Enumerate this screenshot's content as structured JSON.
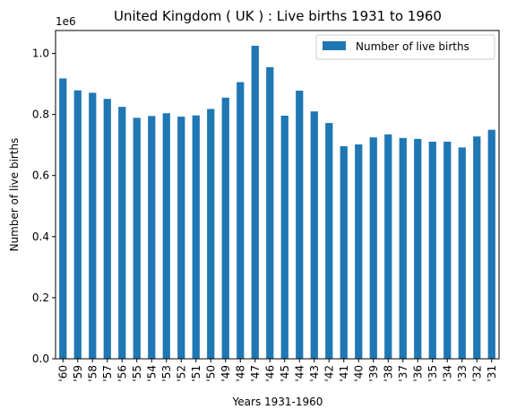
{
  "chart_data": {
    "type": "bar",
    "title": "United Kingdom ( UK ) : Live births 1931 to 1960",
    "xlabel": "Years 1931-1960",
    "ylabel": "Number of live births",
    "offset_label": "1e6",
    "ylim": [
      0,
      1075000
    ],
    "yticks": [
      0,
      200000,
      400000,
      600000,
      800000,
      1000000
    ],
    "ytick_labels": [
      "0.0",
      "0.2",
      "0.4",
      "0.6",
      "0.8",
      "1.0"
    ],
    "grid": false,
    "legend_position": "top-right",
    "categories": [
      "'60",
      "'59",
      "'58",
      "'57",
      "'56",
      "'55",
      "'54",
      "'53",
      "'52",
      "'51",
      "'50",
      "'49",
      "'48",
      "'47",
      "'46",
      "'45",
      "'44",
      "'43",
      "'42",
      "'41",
      "'40",
      "'39",
      "'38",
      "'37",
      "'36",
      "'35",
      "'34",
      "'33",
      "'32",
      "'31"
    ],
    "series": [
      {
        "name": "Number of live births",
        "color": "#1f77b4",
        "values": [
          918000,
          879000,
          871000,
          851000,
          825000,
          789000,
          795000,
          804000,
          793000,
          797000,
          818000,
          855000,
          906000,
          1025000,
          955000,
          796000,
          878000,
          810000,
          772000,
          696000,
          702000,
          725000,
          735000,
          723000,
          720000,
          711000,
          711000,
          692000,
          728000,
          750000
        ]
      }
    ]
  }
}
